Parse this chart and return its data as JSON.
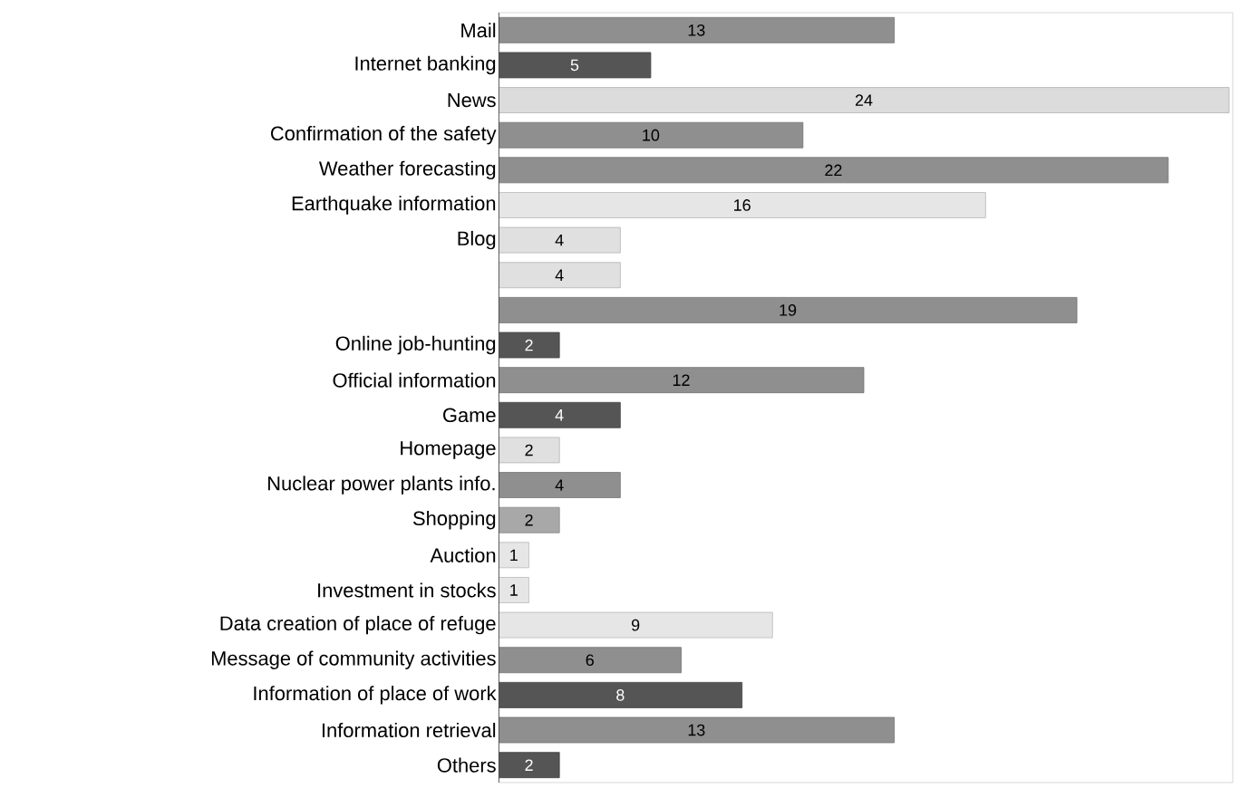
{
  "chart_data": {
    "type": "bar",
    "orientation": "horizontal",
    "data_labels": true,
    "categories": [
      "Mail",
      "Internet banking",
      "News",
      "Confirmation of the safety",
      "Weather forecasting",
      "Earthquake information",
      "Blog",
      null,
      null,
      "Online job-hunting",
      "Official information",
      "Game",
      "Homepage",
      "Nuclear power plants info.",
      "Shopping",
      "Auction",
      "Investment in stocks",
      "Data creation of place of refuge",
      "Message of community activities",
      "Information of place of work",
      "Information retrieval",
      "Others"
    ],
    "values": [
      13,
      5,
      24,
      10,
      22,
      16,
      4,
      4,
      19,
      2,
      12,
      4,
      2,
      4,
      2,
      1,
      1,
      9,
      6,
      8,
      13,
      2
    ],
    "colors": [
      "#8f8f8f",
      "#555555",
      "#dcdcdc",
      "#8f8f8f",
      "#8f8f8f",
      "#e6e6e6",
      "#e0e0e0",
      "#e0e0e0",
      "#8f8f8f",
      "#555555",
      "#8f8f8f",
      "#555555",
      "#e0e0e0",
      "#8f8f8f",
      "#a8a8a8",
      "#e6e6e6",
      "#e6e6e6",
      "#e6e6e6",
      "#8f8f8f",
      "#555555",
      "#8f8f8f",
      "#555555"
    ]
  }
}
